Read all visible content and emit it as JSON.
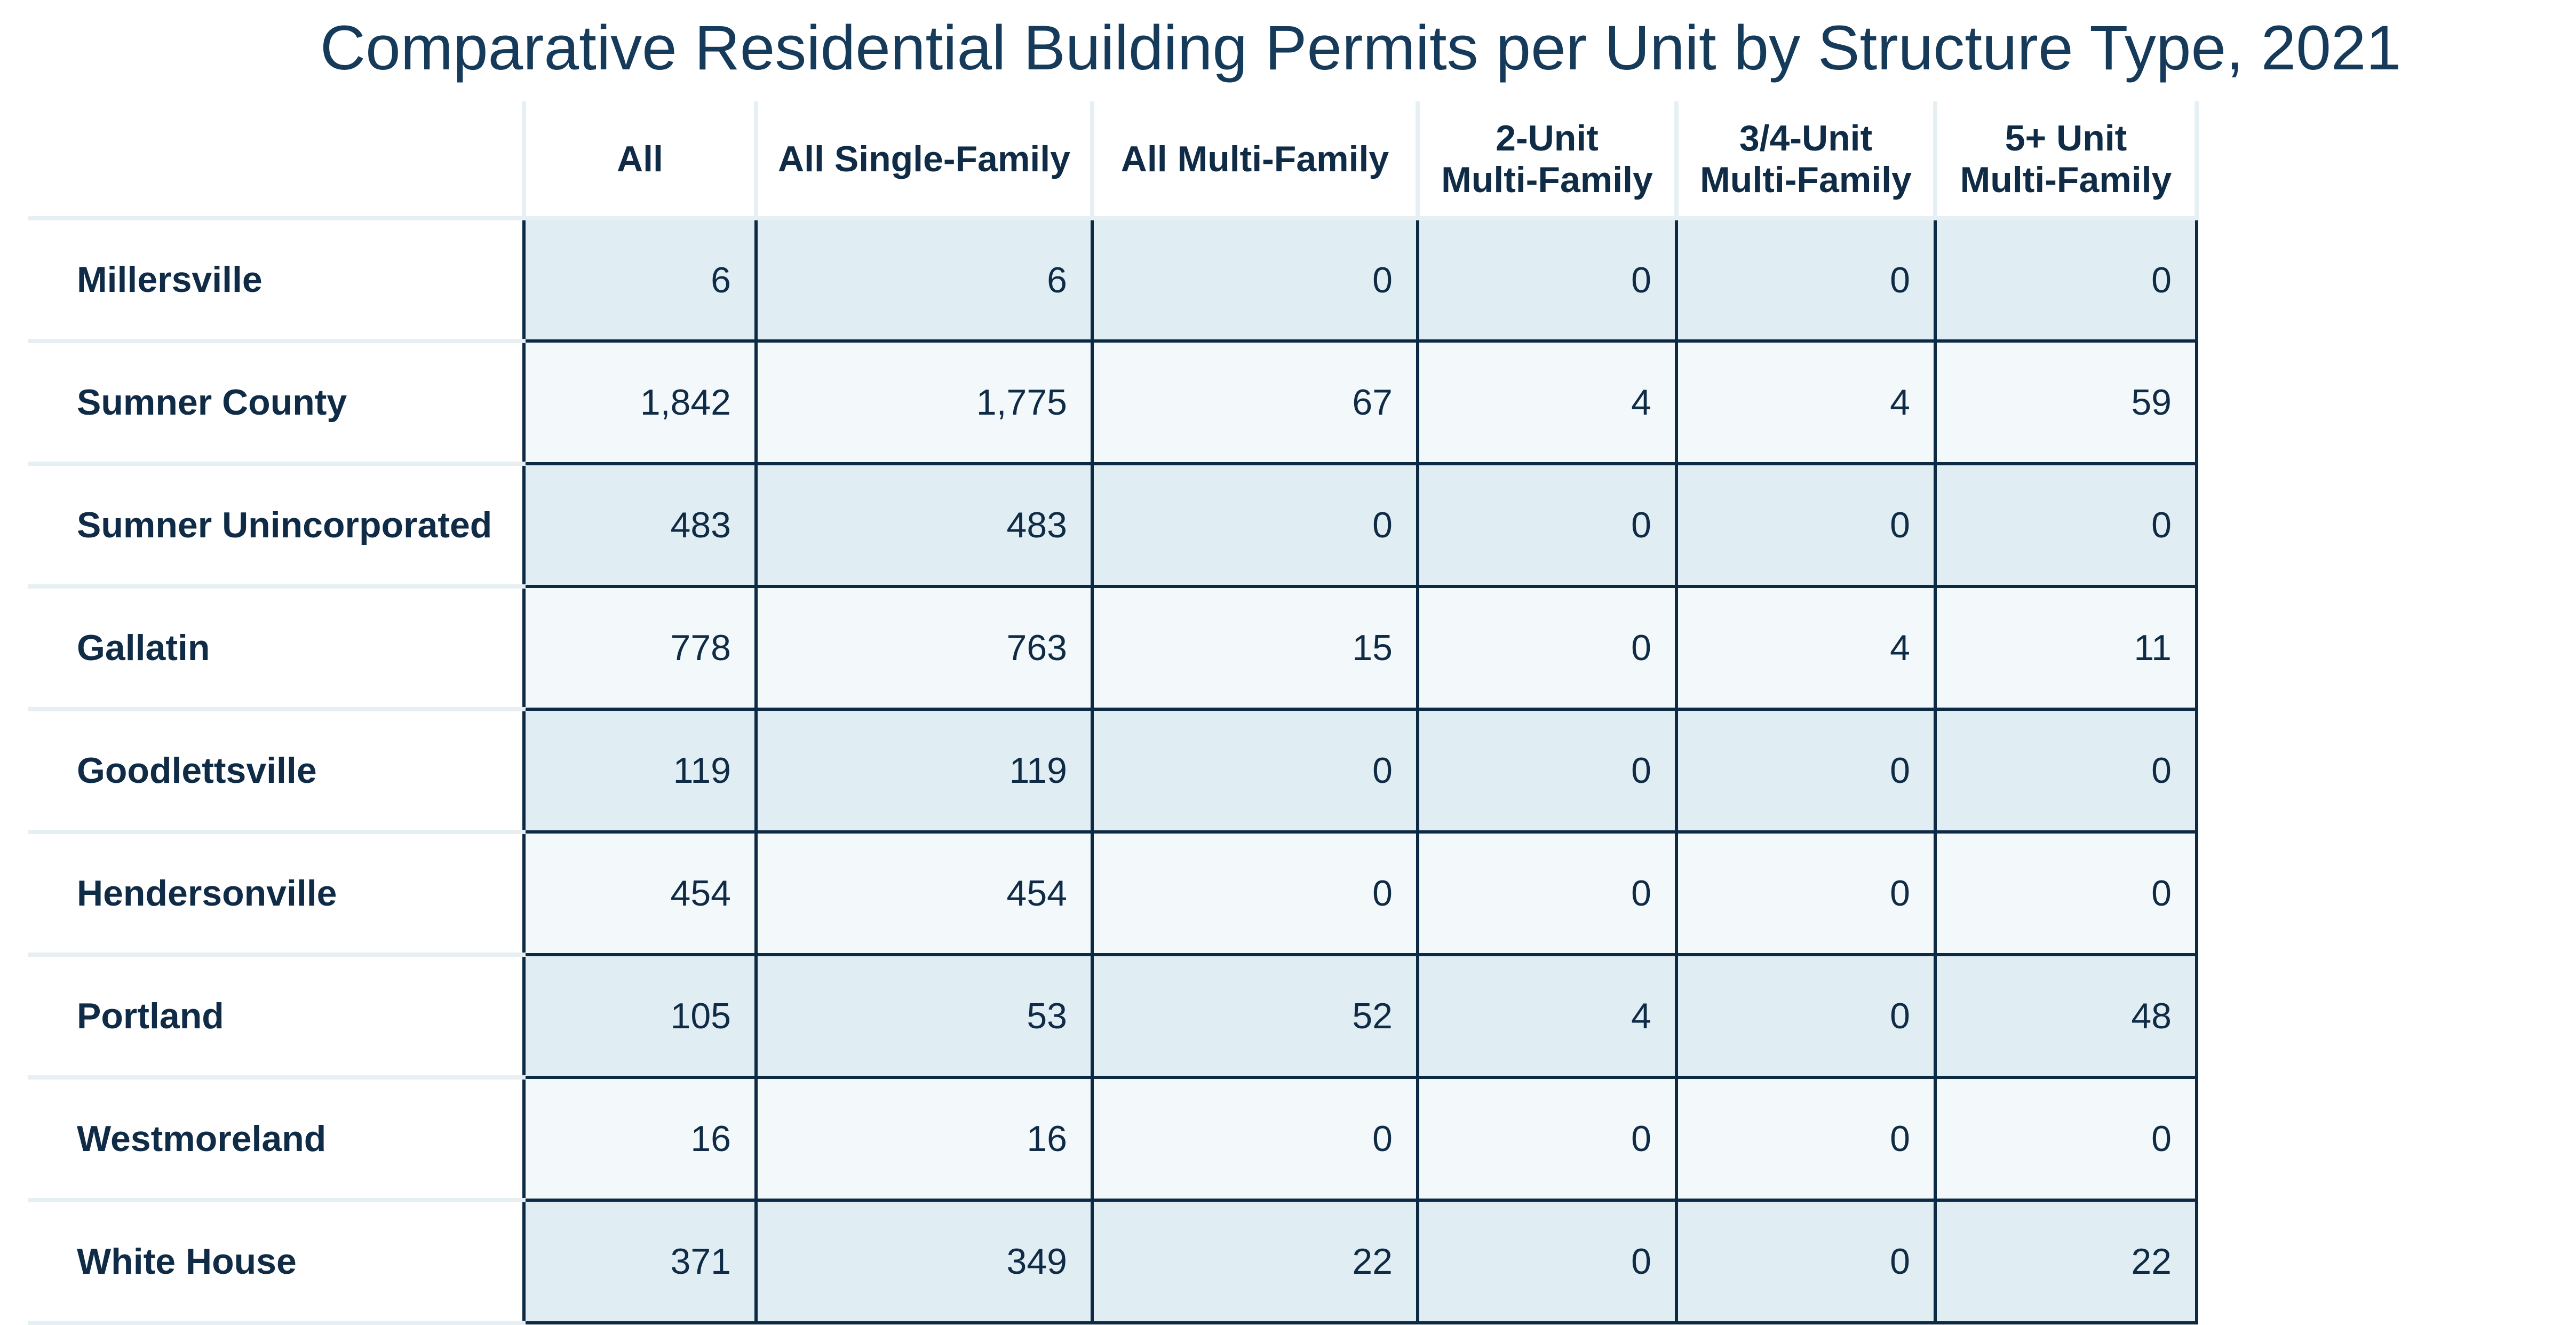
{
  "chart_data": {
    "type": "table",
    "title": "Comparative Residential Building Permits per Unit by Structure Type, 2021",
    "columns": [
      "",
      "All",
      "All Single-Family",
      "All Multi-Family",
      "2-Unit Multi-Family",
      "3/4-Unit Multi-Family",
      "5+ Unit Multi-Family"
    ],
    "column_lines": [
      [],
      [
        "All"
      ],
      [
        "All Single-Family"
      ],
      [
        "All Multi-Family"
      ],
      [
        "2-Unit",
        "Multi-Family"
      ],
      [
        "3/4-Unit",
        "Multi-Family"
      ],
      [
        "5+ Unit",
        "Multi-Family"
      ]
    ],
    "rows": [
      [
        "Millersville",
        "6",
        "6",
        "0",
        "0",
        "0",
        "0"
      ],
      [
        "Sumner County",
        "1,842",
        "1,775",
        "67",
        "4",
        "4",
        "59"
      ],
      [
        "Sumner Unincorporated",
        "483",
        "483",
        "0",
        "0",
        "0",
        "0"
      ],
      [
        "Gallatin",
        "778",
        "763",
        "15",
        "0",
        "4",
        "11"
      ],
      [
        "Goodlettsville",
        "119",
        "119",
        "0",
        "0",
        "0",
        "0"
      ],
      [
        "Hendersonville",
        "454",
        "454",
        "0",
        "0",
        "0",
        "0"
      ],
      [
        "Portland",
        "105",
        "53",
        "52",
        "4",
        "0",
        "48"
      ],
      [
        "Westmoreland",
        "16",
        "16",
        "0",
        "0",
        "0",
        "0"
      ],
      [
        "White House",
        "371",
        "349",
        "22",
        "0",
        "0",
        "22"
      ]
    ],
    "row_shading": [
      "shade",
      "light",
      "shade",
      "light",
      "shade",
      "light",
      "shade",
      "light",
      "shade"
    ]
  },
  "colors": {
    "title": "#163a5a",
    "text": "#0f2b46",
    "cell_border": "#0d2a44",
    "header_divider": "#e6eff3",
    "row_fill_dark": "#e0edf2",
    "row_fill_light": "#f3f8fa"
  }
}
